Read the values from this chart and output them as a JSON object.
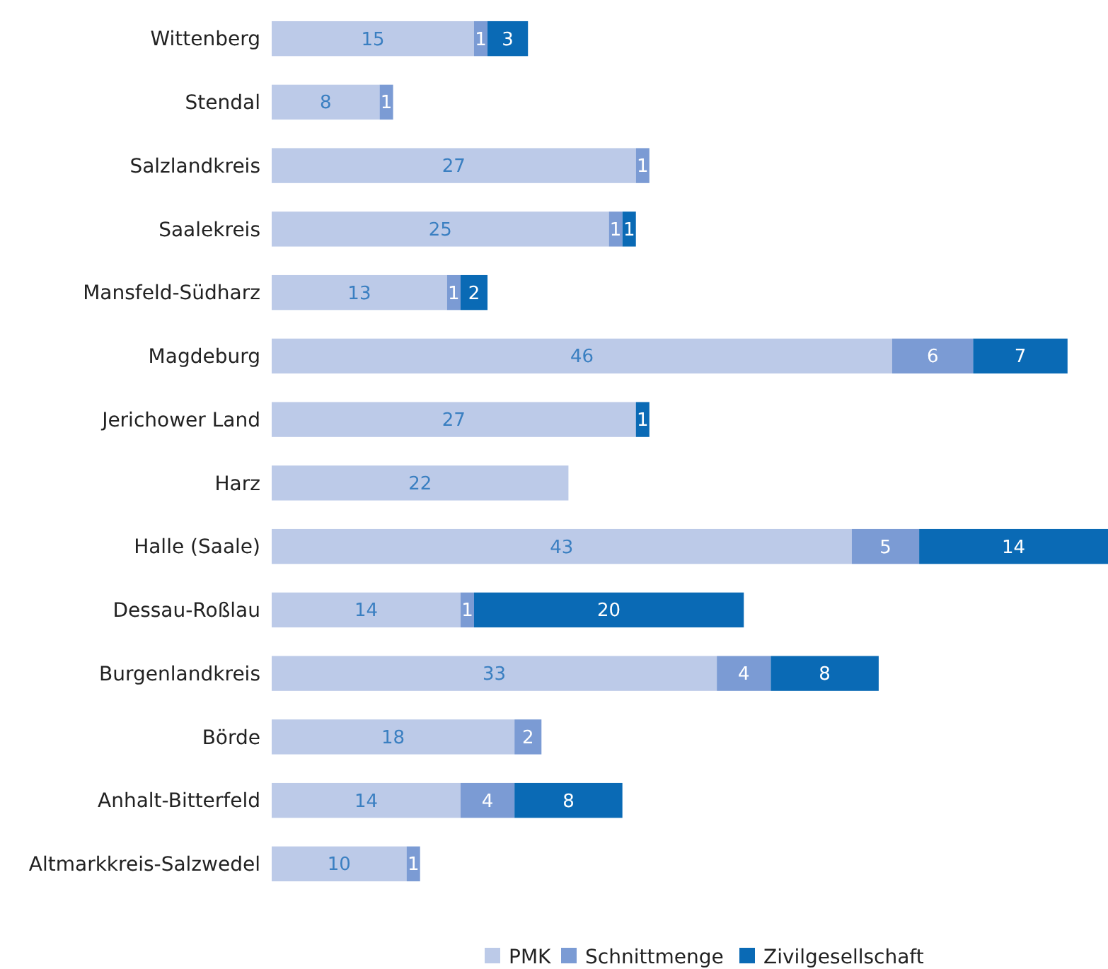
{
  "chart_data": {
    "type": "bar",
    "orientation": "horizontal",
    "stacked": true,
    "data_labels": true,
    "legend": "bottom",
    "categories": [
      "Wittenberg",
      "Stendal",
      "Salzlandkreis",
      "Saalekreis",
      "Mansfeld-Südharz",
      "Magdeburg",
      "Jerichower Land",
      "Harz",
      "Halle (Saale)",
      "Dessau-Roßlau",
      "Burgenlandkreis",
      "Börde",
      "Anhalt-Bitterfeld",
      "Altmarkkreis-Salzwedel"
    ],
    "series": [
      {
        "name": "PMK",
        "color": "#bccae8",
        "values": [
          15,
          8,
          27,
          25,
          13,
          46,
          27,
          22,
          43,
          14,
          33,
          18,
          14,
          10
        ]
      },
      {
        "name": "Schnittmenge",
        "color": "#7b9bd4",
        "values": [
          1,
          1,
          1,
          1,
          1,
          6,
          null,
          null,
          5,
          1,
          4,
          2,
          4,
          1
        ]
      },
      {
        "name": "Zivilgesellschaft",
        "color": "#0a6ab5",
        "values": [
          3,
          null,
          null,
          1,
          2,
          7,
          1,
          null,
          14,
          20,
          8,
          null,
          8,
          null
        ]
      }
    ]
  }
}
